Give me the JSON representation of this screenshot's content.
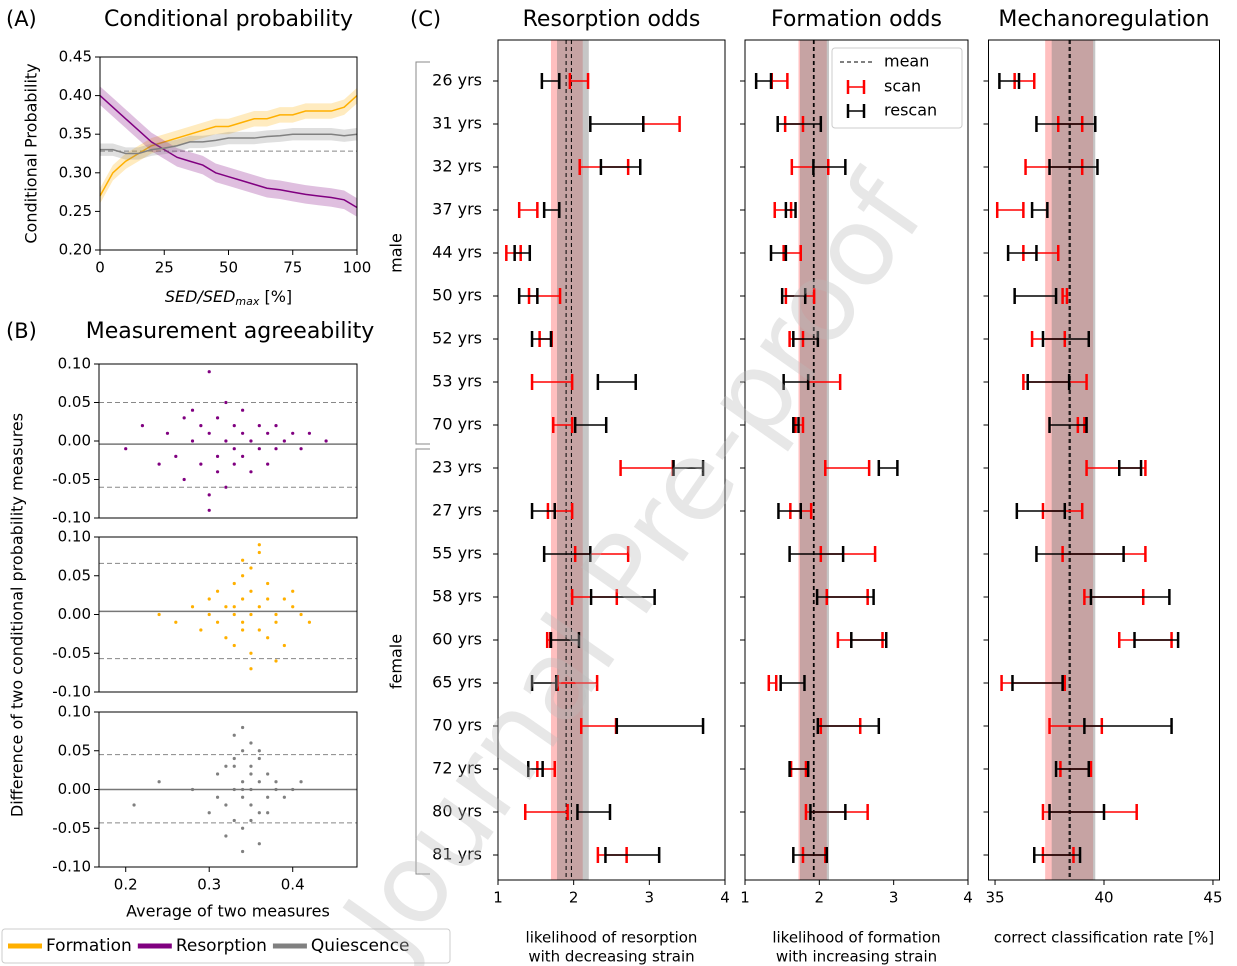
{
  "panel_labels": [
    "(A)",
    "(B)",
    "(C)"
  ],
  "watermark": "Journal Pre-proof",
  "chart_data": [
    {
      "type": "line",
      "title": "Conditional probability",
      "ylabel": "Conditional Probability",
      "xlabel": {
        "base": "SED/SED",
        "sub": "max",
        "unit": " [%]"
      },
      "xlim": [
        0,
        100
      ],
      "xticks": [
        0,
        25,
        50,
        75,
        100
      ],
      "ylim": [
        0.2,
        0.45
      ],
      "yticks": [
        {
          "value": 0.2,
          "label": "0.20"
        },
        0.25,
        {
          "value": 0.3,
          "label": "0.30"
        },
        0.35,
        {
          "value": 0.4,
          "label": "0.40"
        },
        0.45
      ],
      "hline": 0.328,
      "legend": "below",
      "x": [
        0,
        5,
        10,
        15,
        20,
        25,
        30,
        35,
        40,
        45,
        50,
        55,
        60,
        65,
        70,
        75,
        80,
        85,
        90,
        95,
        100
      ],
      "series": [
        {
          "name": "Formation",
          "color": "#ffb000",
          "error": 0.01,
          "values": [
            0.27,
            0.3,
            0.315,
            0.325,
            0.335,
            0.34,
            0.345,
            0.35,
            0.355,
            0.36,
            0.36,
            0.365,
            0.37,
            0.37,
            0.375,
            0.375,
            0.38,
            0.38,
            0.38,
            0.385,
            0.4
          ]
        },
        {
          "name": "Resorption",
          "color": "#800080",
          "error": 0.012,
          "values": [
            0.4,
            0.385,
            0.37,
            0.355,
            0.34,
            0.33,
            0.32,
            0.315,
            0.31,
            0.3,
            0.295,
            0.29,
            0.285,
            0.28,
            0.278,
            0.275,
            0.272,
            0.27,
            0.268,
            0.265,
            0.255
          ]
        },
        {
          "name": "Quiescence",
          "color": "#808080",
          "error": 0.008,
          "values": [
            0.33,
            0.33,
            0.325,
            0.325,
            0.33,
            0.332,
            0.335,
            0.34,
            0.34,
            0.342,
            0.345,
            0.345,
            0.345,
            0.347,
            0.348,
            0.35,
            0.35,
            0.35,
            0.35,
            0.348,
            0.35
          ]
        }
      ]
    },
    {
      "type": "scatter",
      "title": "Measurement agreeability",
      "color": "#800080",
      "xlim": [
        0.168,
        0.477
      ],
      "ylim": [
        -0.1,
        0.1
      ],
      "yticks": [
        {
          "value": -0.1,
          "label": "-0.10"
        },
        -0.05,
        {
          "value": 0,
          "label": "0.00"
        },
        0.05,
        {
          "value": 0.1,
          "label": "0.10"
        }
      ],
      "mean": -0.004,
      "limits": [
        0.05,
        -0.06
      ],
      "x": [
        0.2,
        0.22,
        0.24,
        0.25,
        0.26,
        0.27,
        0.27,
        0.28,
        0.28,
        0.29,
        0.29,
        0.3,
        0.3,
        0.3,
        0.31,
        0.31,
        0.31,
        0.32,
        0.32,
        0.32,
        0.33,
        0.33,
        0.33,
        0.34,
        0.34,
        0.34,
        0.35,
        0.35,
        0.36,
        0.36,
        0.37,
        0.37,
        0.38,
        0.38,
        0.39,
        0.4,
        0.41,
        0.42,
        0.44,
        0.3
      ],
      "y": [
        -0.01,
        0.02,
        -0.03,
        0.01,
        -0.02,
        0.03,
        -0.05,
        0.0,
        0.04,
        -0.03,
        0.02,
        -0.07,
        0.01,
        0.09,
        -0.02,
        0.03,
        -0.04,
        0.0,
        0.05,
        -0.06,
        -0.01,
        0.02,
        -0.03,
        0.01,
        -0.02,
        0.04,
        0.0,
        -0.04,
        0.02,
        -0.01,
        0.01,
        -0.03,
        0.02,
        -0.01,
        0.0,
        0.01,
        -0.01,
        0.01,
        0.0,
        -0.09
      ]
    },
    {
      "type": "scatter",
      "ylabel": "Difference of two conditional probability measures",
      "color": "#ffb000",
      "xlim": [
        0.168,
        0.477
      ],
      "ylim": [
        -0.1,
        0.1
      ],
      "yticks": [
        {
          "value": -0.1,
          "label": "-0.10"
        },
        -0.05,
        {
          "value": 0,
          "label": "0.00"
        },
        0.05,
        {
          "value": 0.1,
          "label": "0.10"
        }
      ],
      "mean": 0.004,
      "limits": [
        0.066,
        -0.057
      ],
      "x": [
        0.24,
        0.26,
        0.28,
        0.29,
        0.3,
        0.3,
        0.31,
        0.31,
        0.32,
        0.32,
        0.33,
        0.33,
        0.33,
        0.34,
        0.34,
        0.34,
        0.34,
        0.35,
        0.35,
        0.35,
        0.35,
        0.36,
        0.36,
        0.36,
        0.37,
        0.37,
        0.37,
        0.38,
        0.38,
        0.39,
        0.39,
        0.4,
        0.4,
        0.41,
        0.42,
        0.36,
        0.35,
        0.34,
        0.38,
        0.33
      ],
      "y": [
        0.0,
        -0.01,
        0.01,
        -0.02,
        0.0,
        0.02,
        -0.01,
        0.03,
        -0.03,
        0.01,
        0.0,
        0.04,
        -0.04,
        0.02,
        -0.01,
        0.05,
        -0.02,
        0.0,
        0.03,
        -0.05,
        0.06,
        0.01,
        -0.02,
        0.08,
        0.02,
        -0.03,
        0.04,
        0.0,
        -0.01,
        0.02,
        -0.04,
        0.01,
        0.03,
        0.0,
        -0.01,
        0.09,
        -0.07,
        0.07,
        -0.06,
        0.01
      ]
    },
    {
      "type": "scatter",
      "xlabel": "Average of two measures",
      "color": "#808080",
      "xlim": [
        0.168,
        0.477
      ],
      "xticks": [
        0.2,
        0.3,
        0.4
      ],
      "ylim": [
        -0.1,
        0.1
      ],
      "yticks": [
        {
          "value": -0.1,
          "label": "-0.10"
        },
        -0.05,
        {
          "value": 0,
          "label": "0.00"
        },
        0.05,
        {
          "value": 0.1,
          "label": "0.10"
        }
      ],
      "mean": 0.0,
      "limits": [
        0.045,
        -0.043
      ],
      "x": [
        0.21,
        0.24,
        0.28,
        0.3,
        0.31,
        0.31,
        0.32,
        0.32,
        0.33,
        0.33,
        0.33,
        0.34,
        0.34,
        0.34,
        0.34,
        0.35,
        0.35,
        0.35,
        0.35,
        0.36,
        0.36,
        0.36,
        0.37,
        0.37,
        0.37,
        0.38,
        0.38,
        0.39,
        0.4,
        0.41,
        0.33,
        0.34,
        0.35,
        0.32,
        0.36,
        0.34,
        0.33,
        0.35,
        0.36,
        0.34
      ],
      "y": [
        -0.02,
        0.01,
        0.0,
        -0.03,
        0.02,
        -0.01,
        0.03,
        -0.02,
        0.0,
        0.04,
        -0.04,
        0.01,
        -0.01,
        0.05,
        -0.05,
        0.02,
        -0.02,
        0.0,
        0.03,
        -0.03,
        0.01,
        0.04,
        -0.01,
        0.02,
        -0.03,
        0.0,
        0.01,
        -0.01,
        0.0,
        0.01,
        0.07,
        -0.08,
        0.06,
        -0.06,
        -0.07,
        0.08,
        0.03,
        -0.04,
        0.05,
        0.0
      ]
    },
    {
      "type": "interval",
      "title": "Resorption odds",
      "xlabel": [
        "likelihood of resorption",
        "with decreasing strain"
      ],
      "xlim": [
        1,
        4
      ],
      "xticks": [
        1,
        2,
        3,
        4
      ],
      "groups": [
        {
          "name": "male",
          "categories": [
            "26 yrs",
            "31 yrs",
            "32 yrs",
            "37 yrs",
            "44 yrs",
            "50 yrs",
            "52 yrs",
            "53 yrs",
            "70 yrs"
          ]
        },
        {
          "name": "female",
          "categories": [
            "23 yrs",
            "27 yrs",
            "55 yrs",
            "58 yrs",
            "60 yrs",
            "65 yrs",
            "70 yrs",
            "72 yrs",
            "80 yrs",
            "81 yrs"
          ]
        }
      ],
      "series": [
        {
          "color": "#ff0000",
          "mean": 1.9,
          "band": [
            1.7,
            2.12
          ],
          "low": [
            1.95,
            2.92,
            2.08,
            1.28,
            1.11,
            1.41,
            1.55,
            1.45,
            1.73,
            2.62,
            1.66,
            2.02,
            1.98,
            1.65,
            1.79,
            2.1,
            1.52,
            1.36,
            2.32
          ],
          "high": [
            2.19,
            3.4,
            2.72,
            1.52,
            1.3,
            1.82,
            1.71,
            1.98,
            1.98,
            3.31,
            1.98,
            2.72,
            2.57,
            1.69,
            2.31,
            2.56,
            1.75,
            1.92,
            2.7
          ]
        },
        {
          "color": "#000000",
          "mean": 1.97,
          "band": [
            1.78,
            2.2
          ],
          "low": [
            1.58,
            2.22,
            2.36,
            1.61,
            1.22,
            1.28,
            1.45,
            2.32,
            2.02,
            3.32,
            1.45,
            1.61,
            2.23,
            1.7,
            1.45,
            2.57,
            1.4,
            2.05,
            2.42
          ],
          "high": [
            1.81,
            2.92,
            2.88,
            1.81,
            1.42,
            1.52,
            1.7,
            2.82,
            2.43,
            3.71,
            1.75,
            2.22,
            3.07,
            2.07,
            1.77,
            3.71,
            1.59,
            2.48,
            3.13
          ]
        }
      ]
    },
    {
      "type": "interval",
      "title": "Formation odds",
      "xlabel": [
        "likelihood of formation",
        "with increasing strain"
      ],
      "xlim": [
        1,
        4
      ],
      "xticks": [
        1,
        2,
        3,
        4
      ],
      "legend": "upper right",
      "mean_label": "mean",
      "series": [
        {
          "name": "scan",
          "color": "#ff0000",
          "mean": 1.92,
          "band": [
            1.72,
            2.1
          ],
          "low": [
            1.36,
            1.54,
            1.63,
            1.4,
            1.52,
            1.55,
            1.6,
            1.85,
            1.68,
            2.08,
            1.61,
            2.02,
            2.1,
            2.25,
            1.32,
            2.02,
            1.62,
            1.82,
            1.78
          ],
          "high": [
            1.57,
            1.78,
            2.12,
            1.62,
            1.75,
            1.93,
            1.78,
            2.28,
            1.78,
            2.67,
            1.89,
            2.75,
            2.65,
            2.85,
            1.42,
            2.55,
            1.82,
            2.65,
            2.08
          ]
        },
        {
          "name": "rescan",
          "color": "#000000",
          "mean": 1.93,
          "band": [
            1.74,
            2.13
          ],
          "low": [
            1.15,
            1.44,
            1.92,
            1.55,
            1.35,
            1.5,
            1.65,
            1.52,
            1.65,
            2.8,
            1.45,
            1.6,
            1.97,
            2.43,
            1.48,
            1.98,
            1.6,
            1.88,
            1.65
          ],
          "high": [
            1.35,
            2.02,
            2.35,
            1.68,
            1.55,
            1.81,
            1.98,
            1.85,
            1.72,
            3.05,
            1.75,
            2.32,
            2.73,
            2.9,
            1.8,
            2.8,
            1.85,
            2.35,
            2.1
          ]
        }
      ]
    },
    {
      "type": "interval",
      "title": "Mechanoregulation",
      "xlabel": [
        "correct classification rate [%]"
      ],
      "xlim": [
        34.7,
        45.3
      ],
      "xticks": [
        35,
        40,
        45
      ],
      "series": [
        {
          "color": "#ff0000",
          "mean": 38.4,
          "band": [
            37.3,
            39.5
          ],
          "low": [
            35.9,
            37.9,
            36.4,
            35.1,
            36.3,
            38.1,
            36.7,
            36.3,
            38.8,
            39.2,
            37.2,
            38.1,
            39.1,
            40.7,
            35.3,
            37.5,
            38.0,
            37.2,
            37.2
          ],
          "high": [
            36.8,
            39.0,
            39.0,
            36.3,
            37.9,
            38.3,
            38.2,
            39.2,
            39.1,
            41.9,
            39.0,
            41.9,
            41.8,
            43.1,
            38.2,
            39.9,
            39.4,
            41.5,
            38.6
          ]
        },
        {
          "color": "#000000",
          "mean": 38.45,
          "band": [
            37.6,
            39.6
          ],
          "low": [
            35.2,
            36.9,
            37.5,
            36.7,
            35.6,
            35.9,
            37.2,
            36.5,
            37.5,
            40.7,
            36.0,
            36.9,
            39.4,
            41.4,
            35.8,
            39.1,
            37.8,
            37.5,
            36.8
          ],
          "high": [
            36.1,
            39.6,
            39.7,
            37.4,
            36.9,
            37.8,
            39.3,
            38.4,
            39.2,
            41.7,
            38.2,
            40.9,
            43.0,
            43.4,
            38.1,
            43.1,
            39.3,
            40.0,
            38.9
          ]
        }
      ]
    }
  ]
}
